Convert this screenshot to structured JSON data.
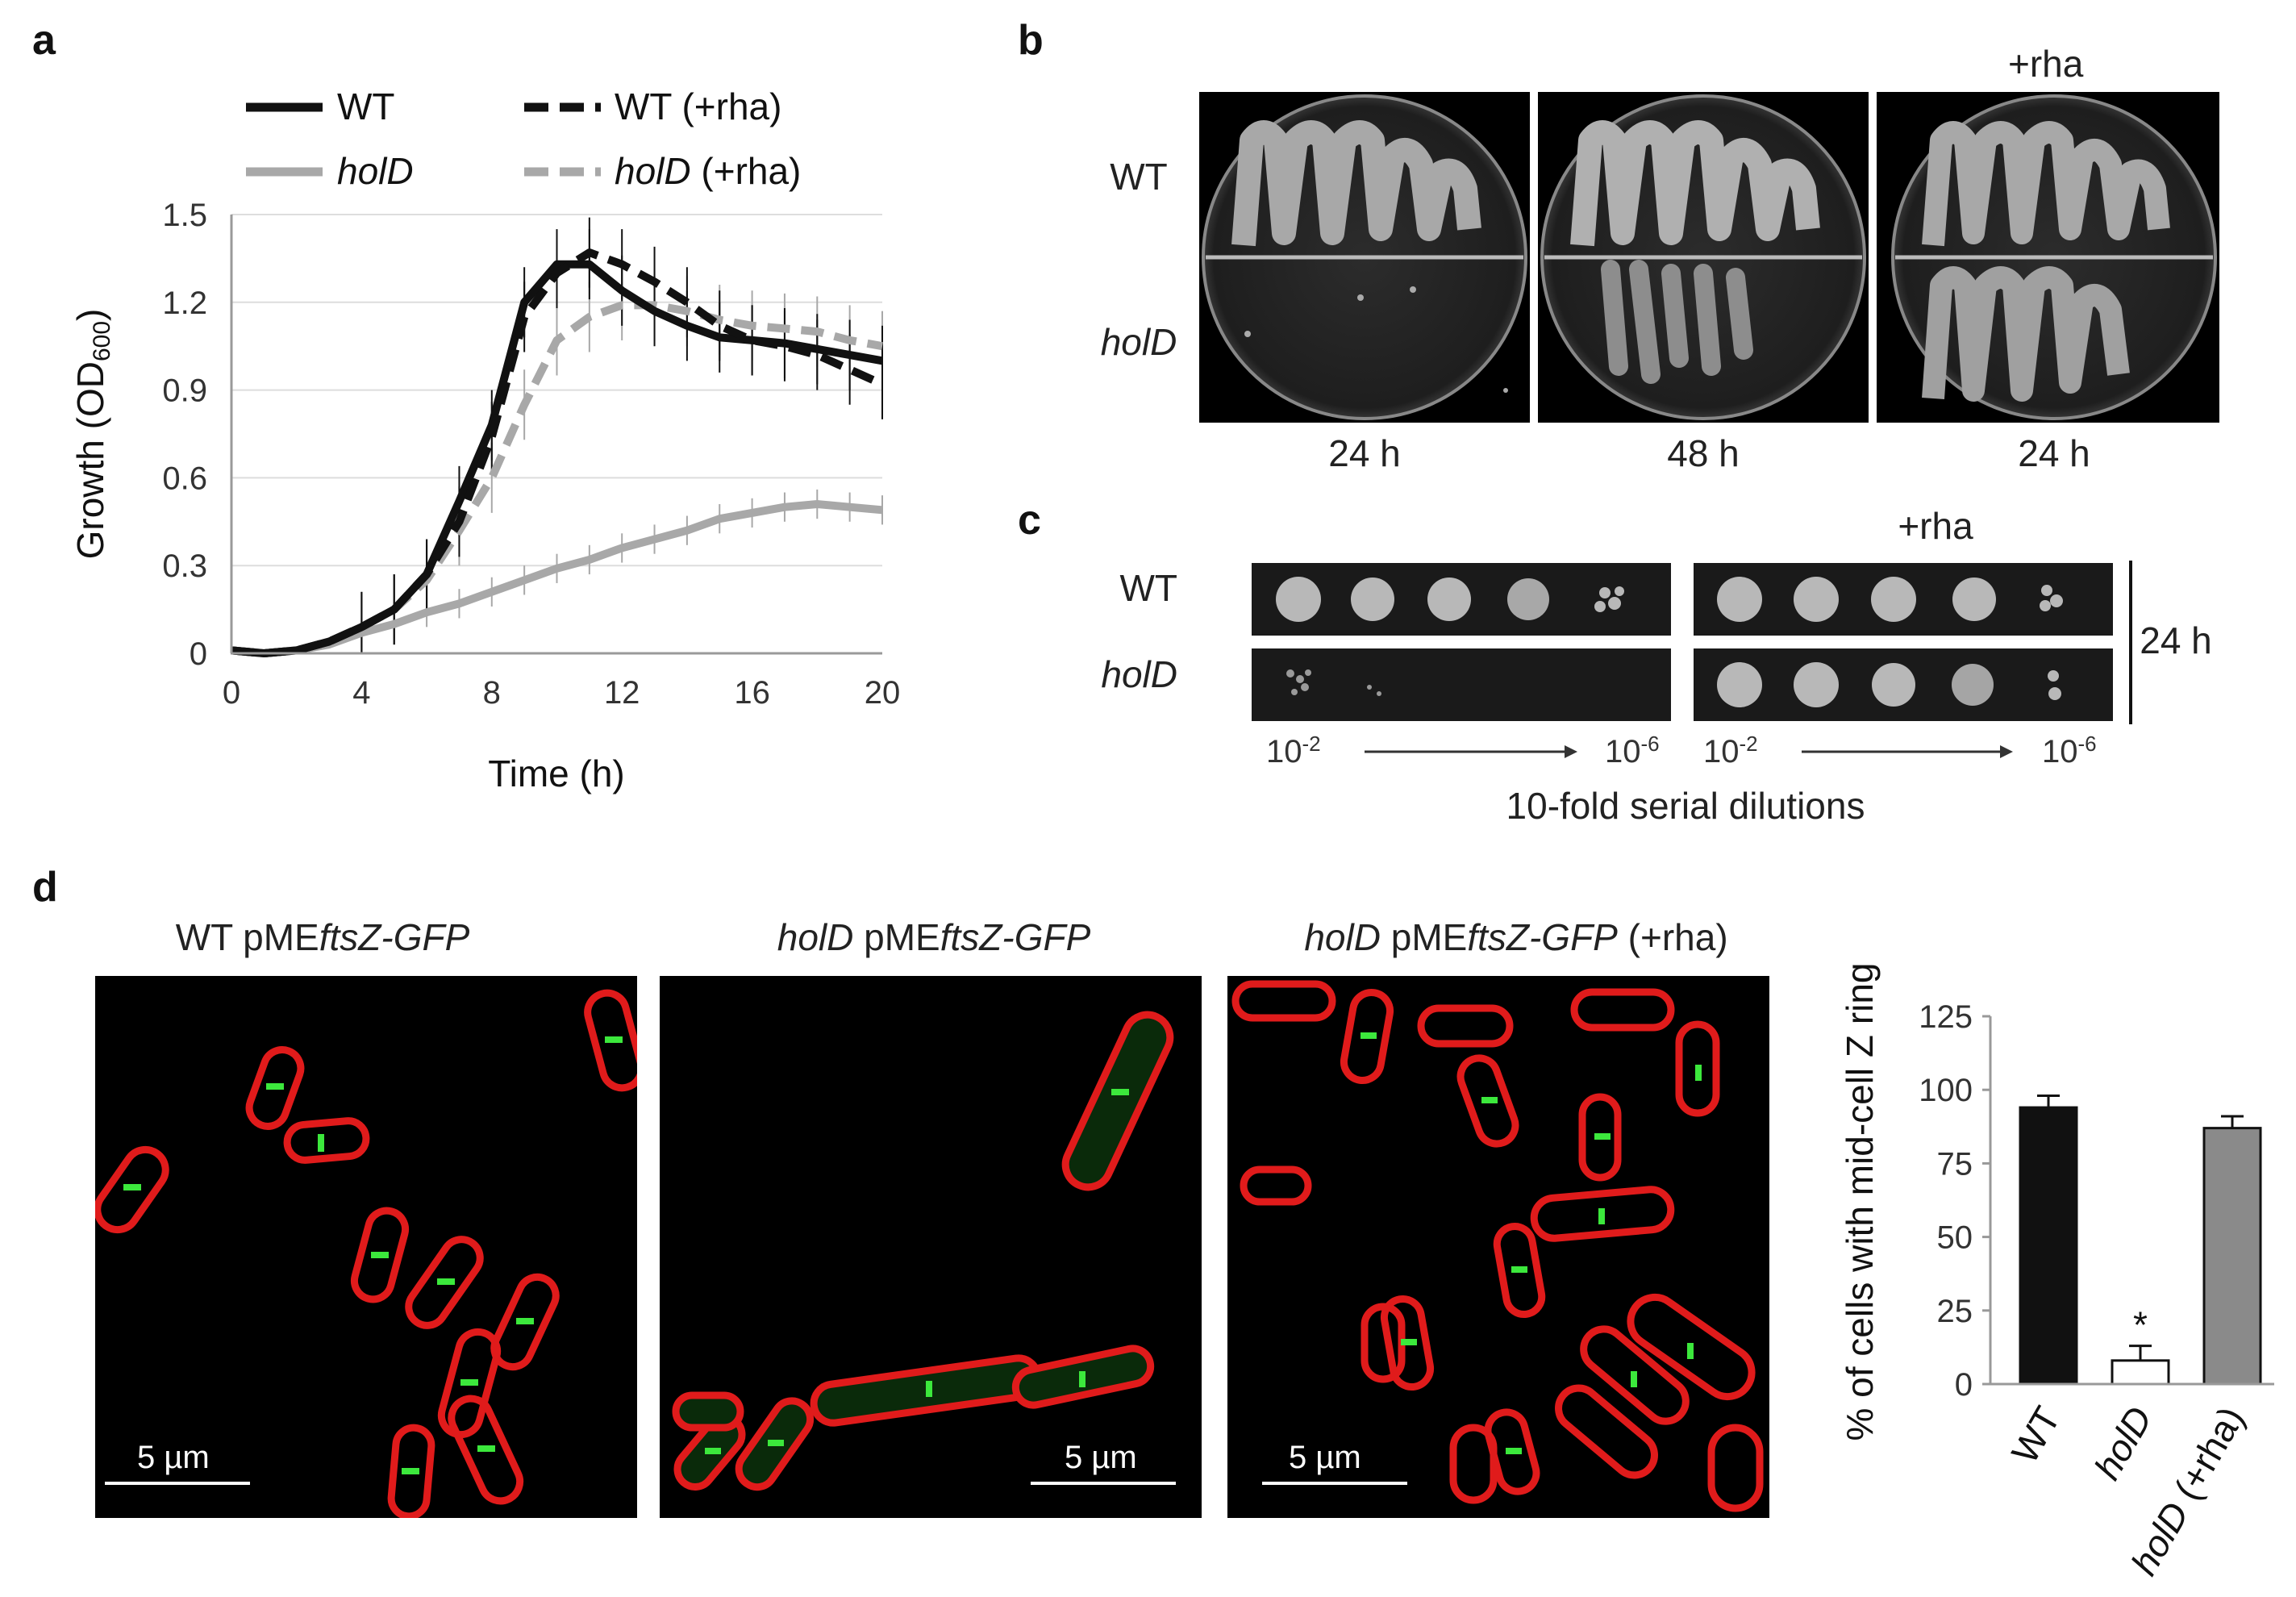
{
  "panels": {
    "a": "a",
    "b": "b",
    "c": "c",
    "d": "d"
  },
  "colors": {
    "wt": "#111111",
    "hold": "#a8a8a8",
    "bar_hold_rha": "#8a8a8a",
    "axis": "#999999",
    "grid": "#dddddd"
  },
  "growth": {
    "ylabel_prefix": "Growth (OD",
    "ylabel_sub": "600",
    "ylabel_suffix": ")",
    "xlabel": "Time (h)",
    "legend": {
      "wt": "WT",
      "wt_rha": "WT (+rha)",
      "hold": "holD",
      "hold_rha_name": "holD",
      "hold_rha_suffix": " (+rha)"
    }
  },
  "plates": {
    "top_label": "+rha",
    "row_labels": [
      "WT",
      "holD"
    ],
    "times": [
      "24 h",
      "48 h",
      "24 h"
    ]
  },
  "spots": {
    "top_label": "+rha",
    "row_labels": [
      "WT",
      "holD"
    ],
    "time": "24 h",
    "dil_start": "10",
    "dil_start_exp": "-2",
    "dil_end": "10",
    "dil_end_exp": "-6",
    "caption": "10-fold serial dilutions"
  },
  "micro": {
    "titles": [
      {
        "pre": "WT pME",
        "ital": "ftsZ-GFP",
        "post": "",
        "ipre": ""
      },
      {
        "pre": " pME",
        "ital": "ftsZ-GFP",
        "post": "",
        "ipre": "holD"
      },
      {
        "pre": " pME",
        "ital": "ftsZ-GFP",
        "post": " (+rha)",
        "ipre": "holD"
      }
    ],
    "scale": "5 µm"
  },
  "chart_data": [
    {
      "type": "line",
      "xlabel": "Time (h)",
      "ylabel": "Growth (OD600)",
      "xlim": [
        0,
        20
      ],
      "ylim": [
        0,
        1.5
      ],
      "xticks": [
        0,
        4,
        8,
        12,
        16,
        20
      ],
      "yticks": [
        0,
        0.3,
        0.6,
        0.9,
        1.2,
        1.5
      ],
      "ytick_labels": [
        "0",
        "0.3",
        "0.6",
        "0.9",
        "1.2",
        "1.5"
      ],
      "grid": "horizontal",
      "legend_position": "top",
      "x": [
        0,
        1,
        2,
        3,
        4,
        5,
        6,
        7,
        8,
        9,
        10,
        11,
        12,
        13,
        14,
        15,
        16,
        17,
        18,
        19,
        20
      ],
      "series": [
        {
          "name": "WT",
          "style": "solid",
          "color": "#111111",
          "values": [
            0.01,
            0.0,
            0.01,
            0.04,
            0.09,
            0.15,
            0.27,
            0.52,
            0.78,
            1.2,
            1.33,
            1.33,
            1.24,
            1.17,
            1.12,
            1.08,
            1.07,
            1.06,
            1.04,
            1.02,
            1.0
          ]
        },
        {
          "name": "WT (+rha)",
          "style": "dashed",
          "color": "#111111",
          "values": [
            0.01,
            0.0,
            0.01,
            0.04,
            0.09,
            0.15,
            0.27,
            0.45,
            0.74,
            1.15,
            1.3,
            1.37,
            1.33,
            1.27,
            1.2,
            1.12,
            1.07,
            1.05,
            1.02,
            0.97,
            0.92
          ]
        },
        {
          "name": "holD",
          "style": "solid",
          "color": "#a8a8a8",
          "values": [
            0.01,
            0.0,
            0.01,
            0.03,
            0.07,
            0.1,
            0.14,
            0.17,
            0.21,
            0.25,
            0.29,
            0.32,
            0.36,
            0.39,
            0.42,
            0.46,
            0.48,
            0.5,
            0.51,
            0.5,
            0.49
          ]
        },
        {
          "name": "holD (+rha)",
          "style": "dashed",
          "color": "#a8a8a8",
          "values": [
            0.01,
            0.0,
            0.01,
            0.04,
            0.09,
            0.15,
            0.25,
            0.42,
            0.6,
            0.85,
            1.07,
            1.15,
            1.19,
            1.19,
            1.17,
            1.14,
            1.12,
            1.11,
            1.1,
            1.07,
            1.05
          ]
        }
      ],
      "error_bars": "vertical lines on each series"
    },
    {
      "type": "bar",
      "ylabel": "% of cells with mid-cell Z ring",
      "categories": [
        "WT",
        "holD",
        "holD (+rha)"
      ],
      "values": [
        94,
        8,
        87
      ],
      "errors": [
        4,
        5,
        4
      ],
      "colors": [
        "#111111",
        "#ffffff",
        "#8a8a8a"
      ],
      "ylim": [
        0,
        125
      ],
      "yticks": [
        0,
        25,
        50,
        75,
        100,
        125
      ],
      "annotation": "*"
    }
  ]
}
